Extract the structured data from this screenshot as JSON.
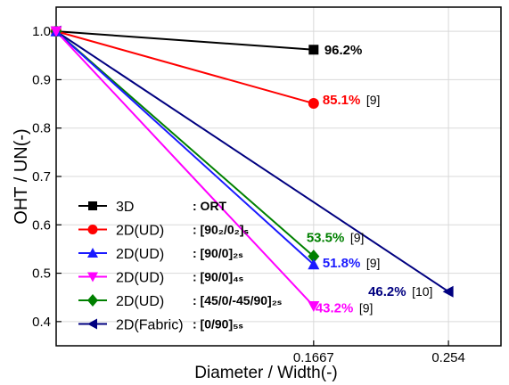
{
  "chart_data": {
    "type": "line",
    "xlabel": "Diameter / Width(-)",
    "ylabel": "OHT / UN(-)",
    "xlim": [
      0,
      0.288
    ],
    "ylim": [
      0.35,
      1.05
    ],
    "xticks": [
      {
        "value": 0.1667,
        "label": "0.1667"
      },
      {
        "value": 0.254,
        "label": "0.254"
      }
    ],
    "yticks": [
      {
        "value": 0.4,
        "label": "0.4"
      },
      {
        "value": 0.5,
        "label": "0.5"
      },
      {
        "value": 0.6,
        "label": "0.6"
      },
      {
        "value": 0.7,
        "label": "0.7"
      },
      {
        "value": 0.8,
        "label": "0.8"
      },
      {
        "value": 0.9,
        "label": "0.9"
      },
      {
        "value": 1.0,
        "label": "1.0"
      }
    ],
    "grid": true,
    "legend_position": "bottom-left",
    "series": [
      {
        "name": "3D",
        "spec": "ORT",
        "marker": "square",
        "color": "#000000",
        "x": [
          0,
          0.1667
        ],
        "y": [
          1.0,
          0.962
        ],
        "label": "96.2%",
        "ref": ""
      },
      {
        "name": "2D(UD)",
        "spec": "[90₂/0₂]ₛ",
        "marker": "circle",
        "color": "#ff0000",
        "x": [
          0,
          0.1667
        ],
        "y": [
          1.0,
          0.851
        ],
        "label": "85.1%",
        "ref": "[9]"
      },
      {
        "name": "2D(UD)",
        "spec": "[90/0]₂ₛ",
        "marker": "triangle-up",
        "color": "#1a1aff",
        "x": [
          0,
          0.1667
        ],
        "y": [
          1.0,
          0.518
        ],
        "label": "51.8%",
        "ref": "[9]"
      },
      {
        "name": "2D(UD)",
        "spec": "[90/0]₄ₛ",
        "marker": "triangle-down",
        "color": "#ff00ff",
        "x": [
          0,
          0.1667
        ],
        "y": [
          1.0,
          0.432
        ],
        "label": "43.2%",
        "ref": "[9]"
      },
      {
        "name": "2D(UD)",
        "spec": "[45/0/-45/90]₂ₛ",
        "marker": "diamond",
        "color": "#008000",
        "x": [
          0,
          0.1667
        ],
        "y": [
          1.0,
          0.535
        ],
        "label": "53.5%",
        "ref": "[9]"
      },
      {
        "name": "2D(Fabric)",
        "spec": "[0/90]₅ₛ",
        "marker": "triangle-left",
        "color": "#000080",
        "x": [
          0,
          0.254
        ],
        "y": [
          1.0,
          0.462
        ],
        "label": "46.2%",
        "ref": "[10]"
      }
    ]
  }
}
